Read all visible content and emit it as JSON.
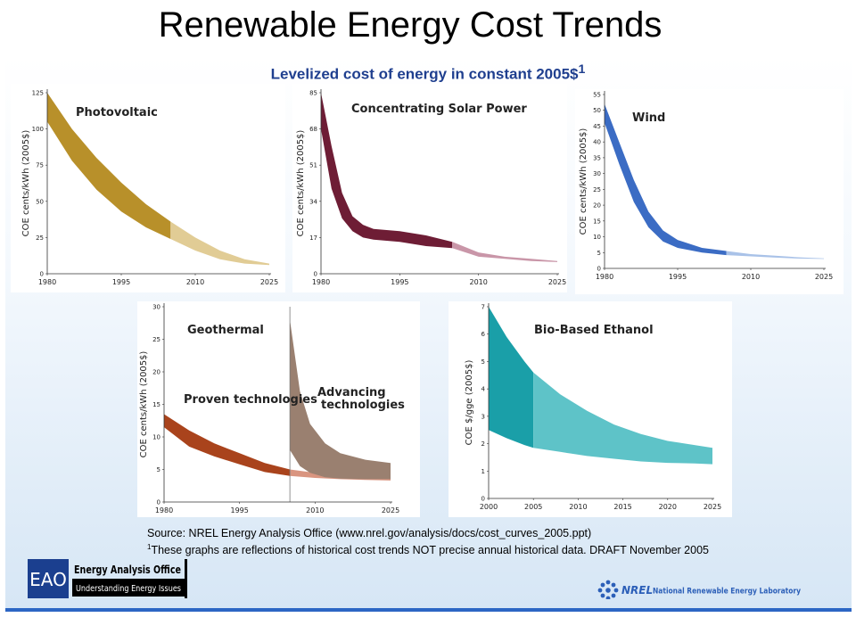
{
  "slide": {
    "title": "Renewable Energy Cost Trends",
    "subtitle": "Levelized cost of energy in constant 2005$",
    "subtitle_sup": "1",
    "source_line": "Source: NREL Energy Analysis Office (www.nrel.gov/analysis/docs/cost_curves_2005.ppt)",
    "footnote_sup": "1",
    "footnote": "These graphs are reflections of historical cost trends NOT precise annual historical data. DRAFT November 2005"
  },
  "logos": {
    "eao_short": "EAO",
    "eao_name": "Energy Analysis Office",
    "eao_tagline": "Understanding Energy Issues",
    "nrel_short": "NREL",
    "nrel_name": "National Renewable Energy Laboratory"
  },
  "chart_data": [
    {
      "id": "pv",
      "type": "area",
      "title": "Photovoltaic",
      "ylabel": "COE cents/kWh (2005$)",
      "x_ticks": [
        "1980",
        "1995",
        "2010",
        "2025"
      ],
      "y_ticks": [
        "0",
        "25",
        "50",
        "75",
        "100",
        "125"
      ],
      "xlim": [
        1980,
        2025
      ],
      "ylim": [
        0,
        125
      ],
      "historical_end": 2005,
      "color_historical": "#b8902a",
      "color_projected": "#e1cc95",
      "x": [
        1980,
        1985,
        1990,
        1995,
        2000,
        2005,
        2010,
        2015,
        2020,
        2025
      ],
      "upper": [
        125,
        100,
        80,
        63,
        48,
        36,
        25,
        16,
        10,
        7
      ],
      "lower": [
        105,
        78,
        58,
        43,
        32,
        24,
        16,
        10,
        7,
        6
      ]
    },
    {
      "id": "csp",
      "type": "area",
      "title": "Concentrating Solar Power",
      "ylabel": "COE cents/kWh (2005$)",
      "x_ticks": [
        "1980",
        "1995",
        "2010",
        "2025"
      ],
      "y_ticks": [
        "0",
        "17",
        "34",
        "51",
        "68",
        "85"
      ],
      "xlim": [
        1980,
        2025
      ],
      "ylim": [
        0,
        85
      ],
      "historical_end": 2005,
      "color_historical": "#6e1d35",
      "color_projected": "#c996a8",
      "x": [
        1980,
        1982,
        1984,
        1986,
        1988,
        1990,
        1995,
        2000,
        2005,
        2010,
        2015,
        2020,
        2025
      ],
      "upper": [
        85,
        60,
        38,
        27,
        23,
        21,
        20,
        18,
        15,
        10,
        8,
        7,
        6
      ],
      "lower": [
        68,
        40,
        26,
        20,
        17,
        16,
        15,
        13,
        12,
        8,
        7,
        6,
        5.5
      ]
    },
    {
      "id": "wind",
      "type": "area",
      "title": "Wind",
      "ylabel": "COE cents/kWh (2005$)",
      "x_ticks": [
        "1980",
        "1995",
        "2010",
        "2025"
      ],
      "y_ticks": [
        "0",
        "5",
        "10",
        "15",
        "20",
        "25",
        "30",
        "35",
        "40",
        "45",
        "50",
        "55"
      ],
      "xlim": [
        1980,
        2025
      ],
      "ylim": [
        0,
        55
      ],
      "historical_end": 2005,
      "color_historical": "#3b6cc4",
      "color_projected": "#a9c2e8",
      "x": [
        1980,
        1983,
        1986,
        1989,
        1992,
        1995,
        2000,
        2005,
        2010,
        2015,
        2020,
        2025
      ],
      "upper": [
        52,
        40,
        28,
        18,
        12,
        9,
        6.5,
        5.5,
        4.5,
        4,
        3.5,
        3.2
      ],
      "lower": [
        46,
        33,
        21,
        13,
        8.5,
        6.5,
        5,
        4.2,
        3.8,
        3.4,
        3.1,
        3
      ]
    },
    {
      "id": "geothermal",
      "type": "area",
      "title": "Geothermal",
      "ylabel": "COE cents/kWh (2005$)",
      "x_ticks": [
        "1980",
        "1995",
        "2010",
        "2025"
      ],
      "y_ticks": [
        "0",
        "5",
        "10",
        "15",
        "20",
        "25",
        "30"
      ],
      "xlim": [
        1980,
        2025
      ],
      "ylim": [
        0,
        30
      ],
      "annotations": [
        "Proven technologies",
        "Advancing technologies"
      ],
      "split_year": 2005,
      "series": [
        {
          "name": "Proven technologies",
          "color_historical": "#a9431c",
          "color_projected": "#d99580",
          "x": [
            1980,
            1985,
            1990,
            1995,
            2000,
            2005,
            2010,
            2015,
            2020,
            2025
          ],
          "upper": [
            13.5,
            11,
            9,
            7.5,
            6,
            5,
            4.5,
            4.2,
            4,
            4
          ],
          "lower": [
            11.5,
            8.5,
            7,
            5.8,
            4.6,
            4,
            3.7,
            3.5,
            3.4,
            3.3
          ]
        },
        {
          "name": "Advancing technologies",
          "color": "#9a8070",
          "x": [
            2005,
            2007,
            2009,
            2012,
            2015,
            2020,
            2025
          ],
          "upper": [
            28,
            17,
            12,
            9,
            7.5,
            6.5,
            6
          ],
          "lower": [
            8,
            5.5,
            4.5,
            3.8,
            3.6,
            3.5,
            3.5
          ]
        }
      ]
    },
    {
      "id": "ethanol",
      "type": "area",
      "title": "Bio-Based Ethanol",
      "ylabel": "COE $/gge (2005$)",
      "x_ticks": [
        "2000",
        "2005",
        "2010",
        "2015",
        "2020",
        "2025"
      ],
      "y_ticks": [
        "0",
        "1",
        "2",
        "3",
        "4",
        "5",
        "6",
        "7"
      ],
      "xlim": [
        2000,
        2025
      ],
      "ylim": [
        0,
        7
      ],
      "historical_end": 2005,
      "color_historical": "#1a9fa8",
      "color_projected": "#5ec3c8",
      "x": [
        2000,
        2002,
        2004,
        2005,
        2008,
        2011,
        2014,
        2017,
        2020,
        2023,
        2025
      ],
      "upper": [
        7,
        5.9,
        5,
        4.6,
        3.8,
        3.2,
        2.7,
        2.35,
        2.1,
        1.95,
        1.85
      ],
      "lower": [
        2.5,
        2.2,
        1.95,
        1.85,
        1.7,
        1.55,
        1.45,
        1.35,
        1.3,
        1.28,
        1.25
      ]
    }
  ]
}
